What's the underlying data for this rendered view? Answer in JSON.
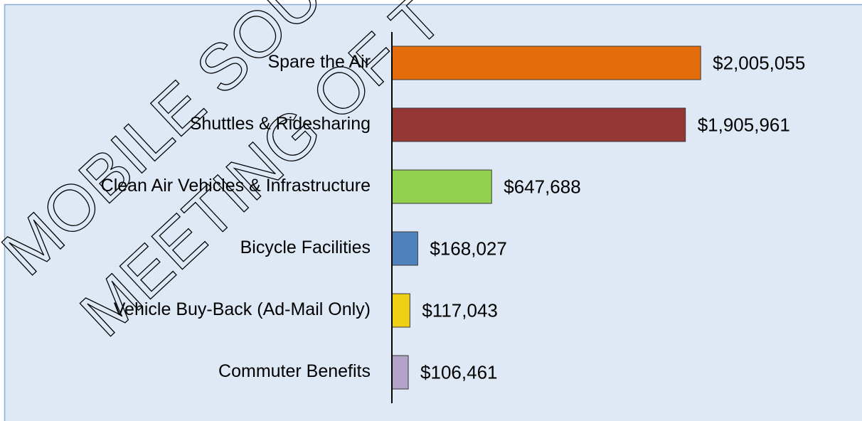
{
  "chart_data": {
    "type": "barh",
    "categories": [
      "Spare the Air",
      "Shuttles & Ridesharing",
      "Clean Air Vehicles & Infrastructure",
      "Bicycle Facilities",
      "Vehicle Buy-Back (Ad-Mail Only)",
      "Commuter Benefits"
    ],
    "values": [
      2005055,
      1905961,
      647688,
      168027,
      117043,
      106461
    ],
    "value_labels": [
      "$2,005,055",
      "$1,905,961",
      "$647,688",
      "$168,027",
      "$117,043",
      "$106,461"
    ],
    "colors": [
      "#e46c0a",
      "#953735",
      "#92d050",
      "#4f81bd",
      "#f0d014",
      "#b3a2c7"
    ],
    "xlim": [
      0,
      2600000
    ],
    "annotations": [
      "MOBILE SOU",
      "MEETING OF T"
    ]
  }
}
